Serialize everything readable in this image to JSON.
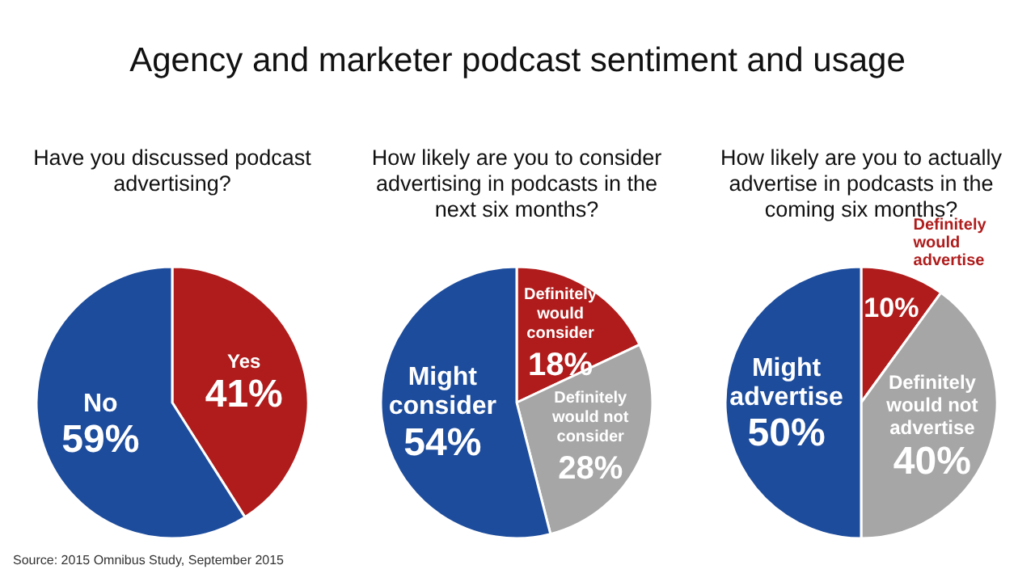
{
  "chart_data": [
    {
      "type": "other",
      "title": "Agency and marketer podcast sentiment and usage",
      "annotations": [
        "Source: 2015 Omnibus Study, September 2015"
      ]
    },
    {
      "type": "pie",
      "title": "Have you discussed podcast advertising?",
      "categories": [
        "Yes",
        "No"
      ],
      "values": [
        41,
        59
      ],
      "colors": [
        "#b01c1c",
        "#1d4c9c"
      ],
      "value_labels": [
        "41%",
        "59%"
      ]
    },
    {
      "type": "pie",
      "title": "How likely are you to consider advertising in podcasts in the next six months?",
      "categories": [
        "Definitely would consider",
        "Definitely would not consider",
        "Might consider"
      ],
      "values": [
        18,
        28,
        54
      ],
      "colors": [
        "#b01c1c",
        "#a6a6a6",
        "#1d4c9c"
      ],
      "value_labels": [
        "18%",
        "28%",
        "54%"
      ]
    },
    {
      "type": "pie",
      "title": "How likely are you to actually advertise in podcasts in the coming six months?",
      "categories": [
        "Definitely would advertise",
        "Definitely would not advertise",
        "Might advertise"
      ],
      "values": [
        10,
        40,
        50
      ],
      "colors": [
        "#b01c1c",
        "#a6a6a6",
        "#1d4c9c"
      ],
      "value_labels": [
        "10%",
        "40%",
        "50%"
      ]
    }
  ]
}
